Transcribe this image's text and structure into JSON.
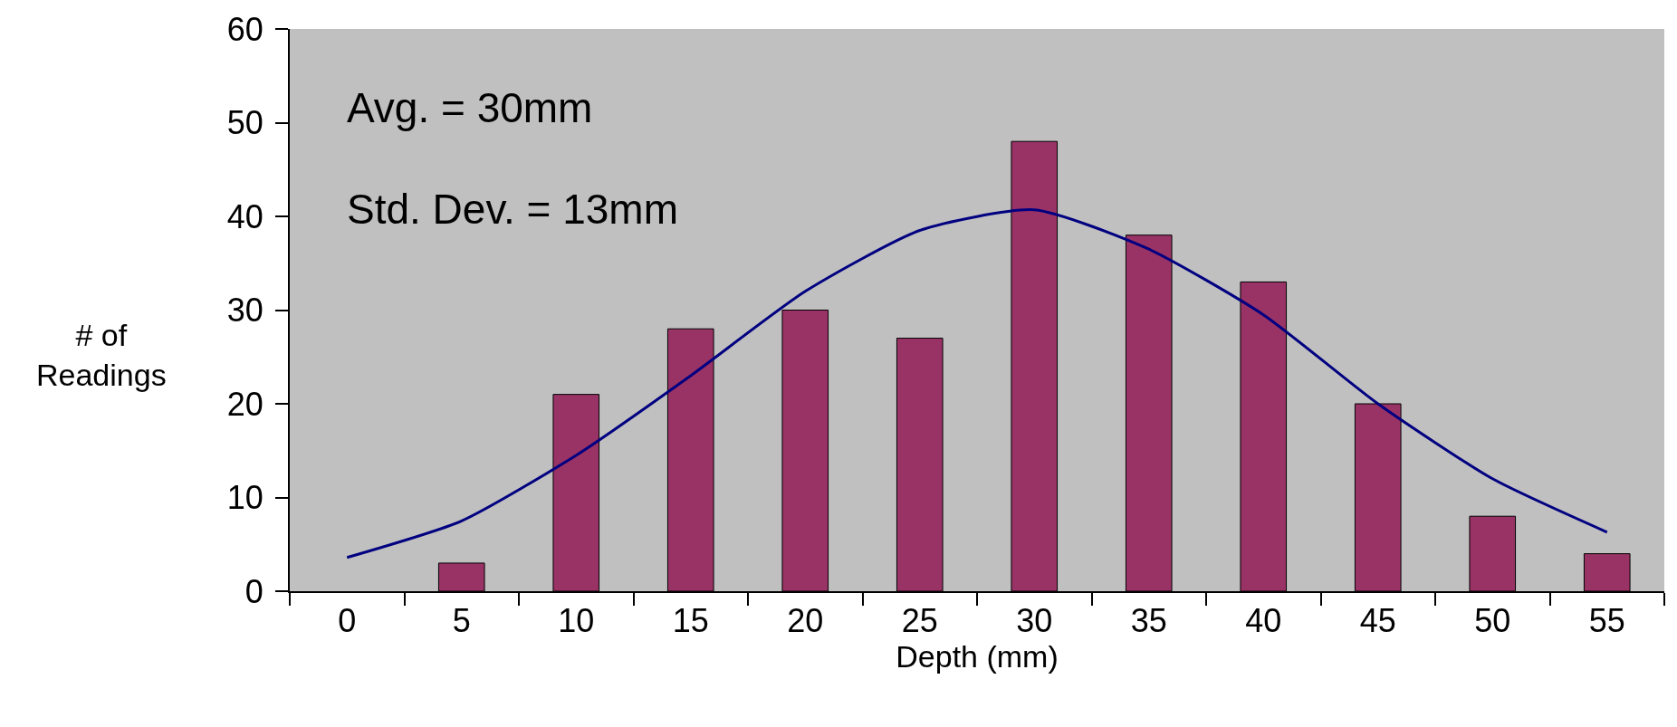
{
  "chart_data": {
    "type": "bar",
    "xlabel": "Depth (mm)",
    "ylabel": "# of Readings",
    "categories": [
      "0",
      "5",
      "10",
      "15",
      "20",
      "25",
      "30",
      "35",
      "40",
      "45",
      "50",
      "55"
    ],
    "series": [
      {
        "color": "#993366",
        "values": [
          null,
          3,
          21,
          28,
          30,
          27,
          48,
          38,
          33,
          20,
          8,
          4
        ]
      },
      {
        "type": "line",
        "color": "#000080",
        "values": [
          3.6,
          7.5,
          14.5,
          23,
          32,
          38.5,
          40.7,
          36.5,
          29.5,
          20,
          12,
          6.3
        ]
      }
    ],
    "ylim": [
      0,
      60
    ],
    "yticks": [
      0,
      10,
      20,
      30,
      40,
      50,
      60
    ],
    "grid": false,
    "marker": "none",
    "line_style": "solid",
    "annotations": [
      "Avg. = 30mm",
      "Std. Dev. = 13mm"
    ]
  }
}
